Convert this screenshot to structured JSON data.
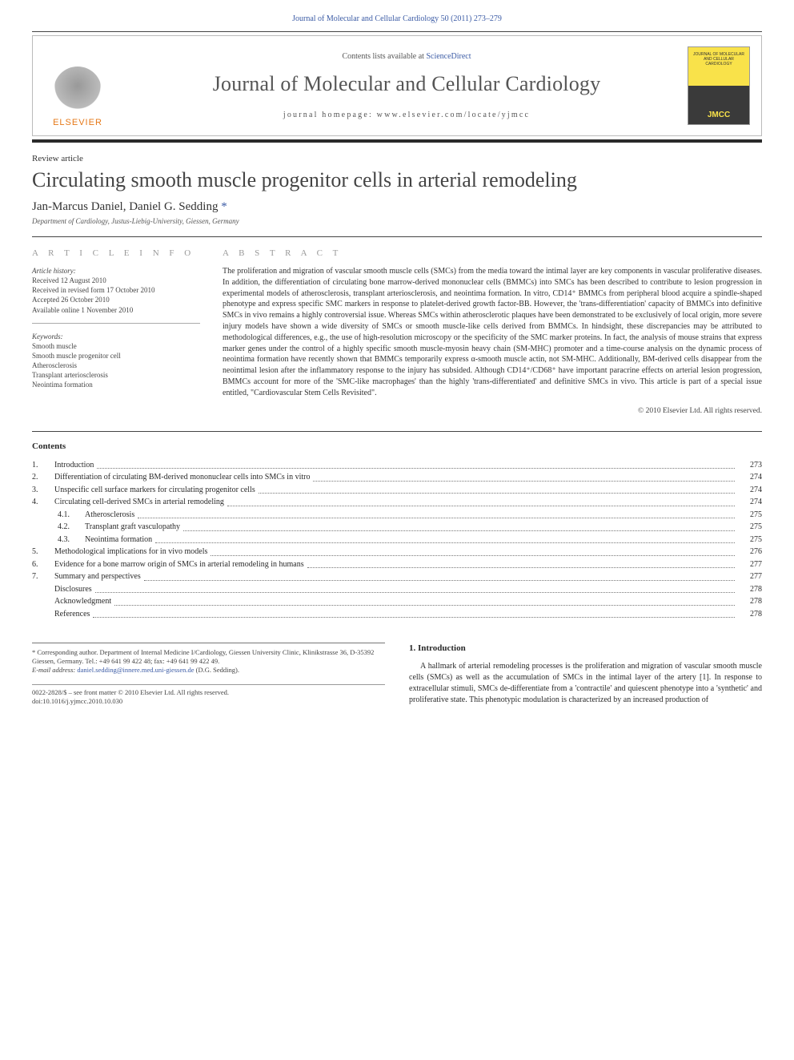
{
  "top": {
    "running_head": "Journal of Molecular and Cellular Cardiology 50 (2011) 273–279",
    "running_head_color": "#3b5ba5"
  },
  "masthead": {
    "publisher_name": "ELSEVIER",
    "publisher_color": "#e67817",
    "contents_prefix": "Contents lists available at ",
    "contents_link": "ScienceDirect",
    "journal_title": "Journal of Molecular and Cellular Cardiology",
    "homepage_label": "journal homepage: www.elsevier.com/locate/yjmcc",
    "cover_text_top": "JOURNAL OF MOLECULAR AND CELLULAR CARDIOLOGY",
    "cover_text_brand": "JMCC"
  },
  "article": {
    "type": "Review article",
    "title": "Circulating smooth muscle progenitor cells in arterial remodeling",
    "authors_html_prefix": "Jan-Marcus Daniel, Daniel G. Sedding ",
    "corr_mark": "*",
    "affiliation": "Department of Cardiology, Justus-Liebig-University, Giessen, Germany"
  },
  "info": {
    "label": "A R T I C L E   I N F O",
    "history_h": "Article history:",
    "received": "Received 12 August 2010",
    "revised": "Received in revised form 17 October 2010",
    "accepted": "Accepted 26 October 2010",
    "online": "Available online 1 November 2010",
    "keywords_h": "Keywords:",
    "keywords": [
      "Smooth muscle",
      "Smooth muscle progenitor cell",
      "Atherosclerosis",
      "Transplant arteriosclerosis",
      "Neointima formation"
    ]
  },
  "abstract": {
    "label": "A B S T R A C T",
    "text": "The proliferation and migration of vascular smooth muscle cells (SMCs) from the media toward the intimal layer are key components in vascular proliferative diseases. In addition, the differentiation of circulating bone marrow-derived mononuclear cells (BMMCs) into SMCs has been described to contribute to lesion progression in experimental models of atherosclerosis, transplant arteriosclerosis, and neointima formation. In vitro, CD14⁺ BMMCs from peripheral blood acquire a spindle-shaped phenotype and express specific SMC markers in response to platelet-derived growth factor-BB. However, the 'trans-differentiation' capacity of BMMCs into definitive SMCs in vivo remains a highly controversial issue. Whereas SMCs within atherosclerotic plaques have been demonstrated to be exclusively of local origin, more severe injury models have shown a wide diversity of SMCs or smooth muscle-like cells derived from BMMCs. In hindsight, these discrepancies may be attributed to methodological differences, e.g., the use of high-resolution microscopy or the specificity of the SMC marker proteins. In fact, the analysis of mouse strains that express marker genes under the control of a highly specific smooth muscle-myosin heavy chain (SM-MHC) promoter and a time-course analysis on the dynamic process of neointima formation have recently shown that BMMCs temporarily express α-smooth muscle actin, not SM-MHC. Additionally, BM-derived cells disappear from the neointimal lesion after the inflammatory response to the injury has subsided. Although CD14⁺/CD68⁺ have important paracrine effects on arterial lesion progression, BMMCs account for more of the 'SMC-like macrophages' than the highly 'trans-differentiated' and definitive SMCs in vivo. This article is part of a special issue entitled, \"Cardiovascular Stem Cells Revisited\".",
    "copyright": "© 2010 Elsevier Ltd. All rights reserved."
  },
  "toc": {
    "heading": "Contents",
    "rows": [
      {
        "num": "1.",
        "title": "Introduction",
        "page": "273"
      },
      {
        "num": "2.",
        "title": "Differentiation of circulating BM-derived mononuclear cells into SMCs in vitro",
        "page": "274"
      },
      {
        "num": "3.",
        "title": "Unspecific cell surface markers for circulating progenitor cells",
        "page": "274"
      },
      {
        "num": "4.",
        "title": "Circulating cell-derived SMCs in arterial remodeling",
        "page": "274"
      },
      {
        "num": "4.1.",
        "title": "Atherosclerosis",
        "page": "275",
        "indent": true
      },
      {
        "num": "4.2.",
        "title": "Transplant graft vasculopathy",
        "page": "275",
        "indent": true
      },
      {
        "num": "4.3.",
        "title": "Neointima formation",
        "page": "275",
        "indent": true
      },
      {
        "num": "5.",
        "title": "Methodological implications for in vivo models",
        "page": "276"
      },
      {
        "num": "6.",
        "title": "Evidence for a bone marrow origin of SMCs in arterial remodeling in humans",
        "page": "277"
      },
      {
        "num": "7.",
        "title": "Summary and perspectives",
        "page": "277"
      },
      {
        "num": "",
        "title": "Disclosures",
        "page": "278"
      },
      {
        "num": "",
        "title": "Acknowledgment",
        "page": "278"
      },
      {
        "num": "",
        "title": "References",
        "page": "278"
      }
    ]
  },
  "footleft": {
    "corr": "* Corresponding author. Department of Internal Medicine I/Cardiology, Giessen University Clinic, Klinikstrasse 36, D-35392 Giessen, Germany. Tel.: +49 641 99 422 48; fax: +49 641 99 422 49.",
    "email_label": "E-mail address: ",
    "email": "daniel.sedding@innere.med.uni-giessen.de",
    "email_suffix": " (D.G. Sedding).",
    "issn": "0022-2828/$ – see front matter © 2010 Elsevier Ltd. All rights reserved.",
    "doi": "doi:10.1016/j.yjmcc.2010.10.030"
  },
  "intro": {
    "heading": "1. Introduction",
    "para": "A hallmark of arterial remodeling processes is the proliferation and migration of vascular smooth muscle cells (SMCs) as well as the accumulation of SMCs in the intimal layer of the artery [1]. In response to extracellular stimuli, SMCs de-differentiate from a 'contractile' and quiescent phenotype into a 'synthetic' and proliferative state. This phenotypic modulation is characterized by an increased production of"
  },
  "style": {
    "page_bg": "#ffffff",
    "accent_link": "#3b5ba5",
    "rule_dark": "#2a2a2a",
    "rule_mid": "#444444",
    "rule_light": "#aaaaaa",
    "title_color": "#555555",
    "font_serif": "Georgia, 'Times New Roman', serif",
    "font_sans": "Arial, sans-serif"
  }
}
